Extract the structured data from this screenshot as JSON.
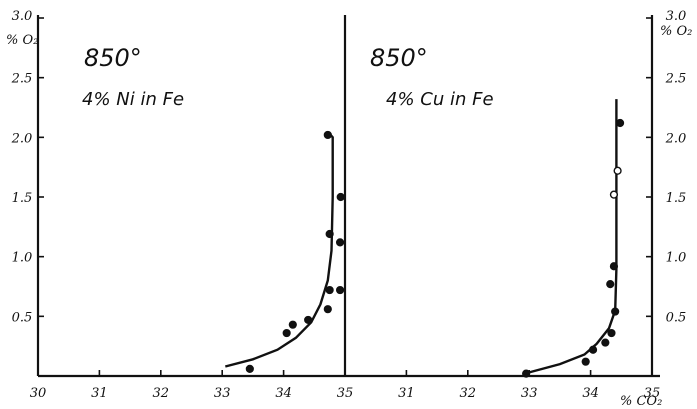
{
  "chart_data": [
    {
      "type": "scatter",
      "panel": "left",
      "temperature_label": "850°",
      "composition_label": "4% Ni in Fe",
      "xlabel": "",
      "ylabel": "% O₂",
      "xlim": [
        30,
        35
      ],
      "ylim": [
        0,
        3.0
      ],
      "x_ticks": [
        "30",
        "31",
        "32",
        "33",
        "34",
        "35"
      ],
      "y_ticks": [
        "0.5",
        "1.0",
        "1.5",
        "2.0",
        "2.5",
        "3.0"
      ],
      "points": [
        {
          "x": 33.45,
          "y": 0.06,
          "open": false
        },
        {
          "x": 34.05,
          "y": 0.36,
          "open": false
        },
        {
          "x": 34.15,
          "y": 0.43,
          "open": false
        },
        {
          "x": 34.4,
          "y": 0.47,
          "open": false
        },
        {
          "x": 34.72,
          "y": 0.56,
          "open": false
        },
        {
          "x": 34.75,
          "y": 0.72,
          "open": false
        },
        {
          "x": 34.75,
          "y": 1.19,
          "open": false
        },
        {
          "x": 34.72,
          "y": 2.02,
          "open": false
        },
        {
          "x": 34.92,
          "y": 0.72,
          "open": false
        },
        {
          "x": 34.92,
          "y": 1.12,
          "open": false
        },
        {
          "x": 34.93,
          "y": 1.5,
          "open": false
        }
      ],
      "curve": [
        [
          33.05,
          0.08
        ],
        [
          33.5,
          0.14
        ],
        [
          33.9,
          0.22
        ],
        [
          34.2,
          0.32
        ],
        [
          34.45,
          0.45
        ],
        [
          34.6,
          0.6
        ],
        [
          34.72,
          0.8
        ],
        [
          34.78,
          1.05
        ],
        [
          34.8,
          1.5
        ],
        [
          34.8,
          2.0
        ],
        [
          34.75,
          2.03
        ]
      ]
    },
    {
      "type": "scatter",
      "panel": "right",
      "temperature_label": "850°",
      "composition_label": "4% Cu in Fe",
      "xlabel": "% CO₂",
      "ylabel": "% O₂",
      "xlim": [
        30,
        35
      ],
      "ylim": [
        0,
        3.0
      ],
      "x_ticks": [
        "31",
        "32",
        "33",
        "34",
        "35"
      ],
      "y_ticks": [
        "0.5",
        "1.0",
        "1.5",
        "2.0",
        "2.5",
        "3.0"
      ],
      "points": [
        {
          "x": 32.95,
          "y": 0.02,
          "open": false
        },
        {
          "x": 33.92,
          "y": 0.12,
          "open": false
        },
        {
          "x": 34.04,
          "y": 0.22,
          "open": false
        },
        {
          "x": 34.24,
          "y": 0.28,
          "open": false
        },
        {
          "x": 34.34,
          "y": 0.36,
          "open": false
        },
        {
          "x": 34.4,
          "y": 0.54,
          "open": false
        },
        {
          "x": 34.32,
          "y": 0.77,
          "open": false
        },
        {
          "x": 34.38,
          "y": 0.92,
          "open": false
        },
        {
          "x": 34.38,
          "y": 1.52,
          "open": true
        },
        {
          "x": 34.44,
          "y": 1.72,
          "open": true
        },
        {
          "x": 34.48,
          "y": 2.12,
          "open": false
        }
      ],
      "curve": [
        [
          33.0,
          0.03
        ],
        [
          33.5,
          0.1
        ],
        [
          33.9,
          0.18
        ],
        [
          34.1,
          0.27
        ],
        [
          34.3,
          0.4
        ],
        [
          34.4,
          0.55
        ],
        [
          34.42,
          0.9
        ],
        [
          34.42,
          1.5
        ],
        [
          34.42,
          2.0
        ],
        [
          34.42,
          2.32
        ]
      ]
    }
  ]
}
